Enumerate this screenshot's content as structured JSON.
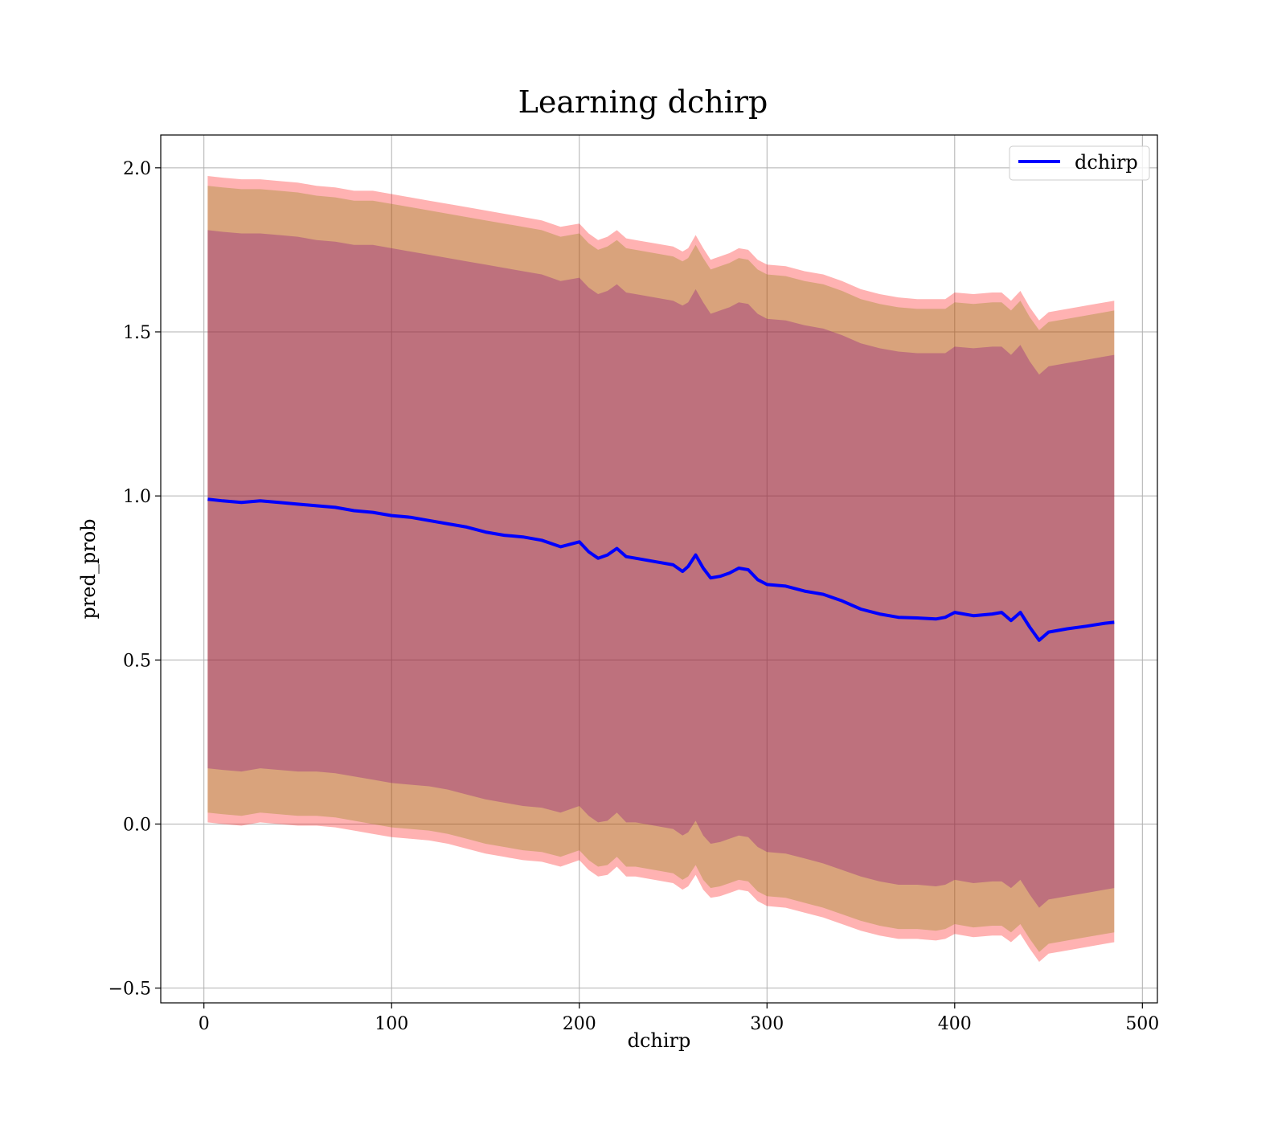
{
  "chart_data": {
    "type": "line",
    "title": "Learning dchirp",
    "xlabel": "dchirp",
    "ylabel": "pred_prob",
    "xlim": [
      -23,
      508
    ],
    "ylim": [
      -0.545,
      2.1
    ],
    "xticks": [
      0,
      100,
      200,
      300,
      400,
      500
    ],
    "xtick_labels": [
      "0",
      "100",
      "200",
      "300",
      "400",
      "500"
    ],
    "yticks": [
      -0.5,
      0.0,
      0.5,
      1.0,
      1.5,
      2.0
    ],
    "ytick_labels": [
      "−0.5",
      "0.0",
      "0.5",
      "1.0",
      "1.5",
      "2.0"
    ],
    "grid": true,
    "legend": {
      "position": "top-right",
      "entries": [
        "dchirp"
      ]
    },
    "colors": {
      "line": "#0000ff",
      "band_outer": "#ff0000",
      "band_middle": "#808000",
      "band_inner": "#800080"
    },
    "series": [
      {
        "name": "dchirp",
        "x": [
          2,
          10,
          20,
          30,
          40,
          50,
          60,
          70,
          80,
          90,
          100,
          110,
          120,
          130,
          140,
          150,
          160,
          170,
          180,
          190,
          200,
          205,
          210,
          215,
          220,
          225,
          230,
          240,
          250,
          255,
          258,
          262,
          266,
          270,
          275,
          280,
          285,
          290,
          295,
          300,
          310,
          320,
          330,
          340,
          350,
          360,
          370,
          380,
          390,
          395,
          400,
          410,
          420,
          425,
          430,
          435,
          440,
          445,
          450,
          460,
          470,
          480,
          485
        ],
        "y": [
          0.99,
          0.985,
          0.98,
          0.985,
          0.98,
          0.975,
          0.97,
          0.965,
          0.955,
          0.95,
          0.94,
          0.935,
          0.925,
          0.915,
          0.905,
          0.89,
          0.88,
          0.875,
          0.865,
          0.845,
          0.86,
          0.83,
          0.81,
          0.82,
          0.84,
          0.815,
          0.81,
          0.8,
          0.79,
          0.77,
          0.785,
          0.82,
          0.78,
          0.75,
          0.755,
          0.765,
          0.78,
          0.775,
          0.745,
          0.73,
          0.725,
          0.71,
          0.7,
          0.68,
          0.655,
          0.64,
          0.63,
          0.628,
          0.625,
          0.63,
          0.645,
          0.635,
          0.64,
          0.645,
          0.62,
          0.645,
          0.6,
          0.56,
          0.585,
          0.595,
          0.603,
          0.612,
          0.615
        ],
        "band_outer_upper": [
          1.975,
          1.97,
          1.965,
          1.965,
          1.96,
          1.955,
          1.945,
          1.94,
          1.93,
          1.93,
          1.92,
          1.91,
          1.9,
          1.89,
          1.88,
          1.87,
          1.86,
          1.85,
          1.84,
          1.82,
          1.83,
          1.8,
          1.78,
          1.79,
          1.81,
          1.785,
          1.78,
          1.77,
          1.76,
          1.745,
          1.755,
          1.795,
          1.755,
          1.72,
          1.73,
          1.74,
          1.755,
          1.75,
          1.72,
          1.705,
          1.7,
          1.685,
          1.675,
          1.655,
          1.63,
          1.615,
          1.605,
          1.6,
          1.6,
          1.6,
          1.62,
          1.615,
          1.62,
          1.62,
          1.595,
          1.625,
          1.575,
          1.535,
          1.56,
          1.57,
          1.58,
          1.59,
          1.595
        ],
        "band_outer_lower": [
          0.005,
          0.0,
          -0.005,
          0.005,
          0.0,
          -0.005,
          -0.005,
          -0.01,
          -0.02,
          -0.03,
          -0.04,
          -0.045,
          -0.05,
          -0.06,
          -0.075,
          -0.09,
          -0.1,
          -0.11,
          -0.115,
          -0.13,
          -0.11,
          -0.14,
          -0.16,
          -0.155,
          -0.13,
          -0.16,
          -0.16,
          -0.17,
          -0.18,
          -0.2,
          -0.19,
          -0.155,
          -0.2,
          -0.225,
          -0.22,
          -0.21,
          -0.2,
          -0.205,
          -0.235,
          -0.25,
          -0.255,
          -0.27,
          -0.285,
          -0.305,
          -0.325,
          -0.34,
          -0.35,
          -0.35,
          -0.355,
          -0.35,
          -0.335,
          -0.345,
          -0.34,
          -0.34,
          -0.36,
          -0.335,
          -0.38,
          -0.42,
          -0.395,
          -0.385,
          -0.375,
          -0.365,
          -0.36
        ],
        "band_middle_upper": [
          1.945,
          1.94,
          1.935,
          1.935,
          1.93,
          1.925,
          1.915,
          1.91,
          1.9,
          1.9,
          1.89,
          1.88,
          1.87,
          1.86,
          1.85,
          1.84,
          1.83,
          1.82,
          1.81,
          1.79,
          1.8,
          1.77,
          1.75,
          1.76,
          1.78,
          1.755,
          1.75,
          1.74,
          1.73,
          1.715,
          1.725,
          1.765,
          1.725,
          1.69,
          1.7,
          1.71,
          1.725,
          1.72,
          1.69,
          1.675,
          1.67,
          1.655,
          1.645,
          1.625,
          1.6,
          1.585,
          1.575,
          1.57,
          1.57,
          1.57,
          1.59,
          1.585,
          1.59,
          1.59,
          1.565,
          1.595,
          1.545,
          1.505,
          1.53,
          1.54,
          1.55,
          1.56,
          1.565
        ],
        "band_middle_lower": [
          0.035,
          0.03,
          0.025,
          0.035,
          0.03,
          0.025,
          0.025,
          0.02,
          0.01,
          0.0,
          -0.01,
          -0.015,
          -0.02,
          -0.03,
          -0.045,
          -0.06,
          -0.07,
          -0.08,
          -0.085,
          -0.1,
          -0.08,
          -0.11,
          -0.13,
          -0.125,
          -0.1,
          -0.13,
          -0.13,
          -0.14,
          -0.15,
          -0.17,
          -0.16,
          -0.125,
          -0.17,
          -0.195,
          -0.19,
          -0.18,
          -0.17,
          -0.175,
          -0.205,
          -0.22,
          -0.225,
          -0.24,
          -0.255,
          -0.275,
          -0.295,
          -0.31,
          -0.32,
          -0.32,
          -0.325,
          -0.32,
          -0.305,
          -0.315,
          -0.31,
          -0.31,
          -0.33,
          -0.305,
          -0.35,
          -0.39,
          -0.365,
          -0.355,
          -0.345,
          -0.335,
          -0.33
        ],
        "band_inner_upper": [
          1.81,
          1.805,
          1.8,
          1.8,
          1.795,
          1.79,
          1.78,
          1.775,
          1.765,
          1.765,
          1.755,
          1.745,
          1.735,
          1.725,
          1.715,
          1.705,
          1.695,
          1.685,
          1.675,
          1.655,
          1.665,
          1.635,
          1.615,
          1.625,
          1.645,
          1.62,
          1.615,
          1.605,
          1.595,
          1.58,
          1.59,
          1.63,
          1.59,
          1.555,
          1.565,
          1.575,
          1.59,
          1.585,
          1.555,
          1.54,
          1.535,
          1.52,
          1.51,
          1.49,
          1.465,
          1.45,
          1.44,
          1.435,
          1.435,
          1.435,
          1.455,
          1.45,
          1.455,
          1.455,
          1.43,
          1.46,
          1.41,
          1.37,
          1.395,
          1.405,
          1.415,
          1.425,
          1.43
        ],
        "band_inner_lower": [
          0.17,
          0.165,
          0.16,
          0.17,
          0.165,
          0.16,
          0.16,
          0.155,
          0.145,
          0.135,
          0.125,
          0.12,
          0.115,
          0.105,
          0.09,
          0.075,
          0.065,
          0.055,
          0.05,
          0.035,
          0.055,
          0.025,
          0.005,
          0.01,
          0.035,
          0.005,
          0.005,
          -0.005,
          -0.015,
          -0.035,
          -0.025,
          0.01,
          -0.035,
          -0.06,
          -0.055,
          -0.045,
          -0.035,
          -0.04,
          -0.07,
          -0.085,
          -0.09,
          -0.105,
          -0.12,
          -0.14,
          -0.16,
          -0.175,
          -0.185,
          -0.185,
          -0.19,
          -0.185,
          -0.17,
          -0.18,
          -0.175,
          -0.175,
          -0.195,
          -0.17,
          -0.215,
          -0.255,
          -0.23,
          -0.22,
          -0.21,
          -0.2,
          -0.195
        ]
      }
    ]
  }
}
